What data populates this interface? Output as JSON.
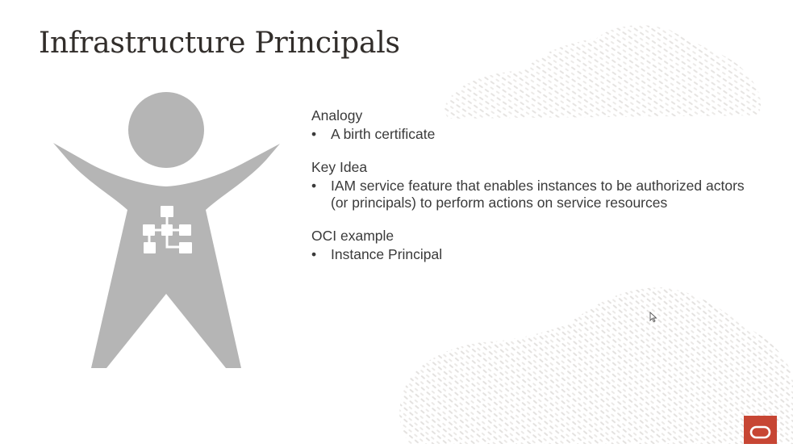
{
  "slide": {
    "title": "Infrastructure Principals",
    "sections": [
      {
        "heading": "Analogy",
        "bullets": [
          "A birth certificate"
        ]
      },
      {
        "heading": "Key Idea",
        "bullets": [
          "IAM service feature that enables instances to be authorized actors (or principals) to perform actions on service resources"
        ]
      },
      {
        "heading": "OCI example",
        "bullets": [
          "Instance Principal"
        ]
      }
    ]
  },
  "graphics": {
    "figure_icon": "person-with-network-icon",
    "logo_icon": "oracle-logo-icon",
    "cursor_icon": "mouse-pointer-icon",
    "texture_icon": "leaf-pattern-texture"
  },
  "colors": {
    "figure": "#b5b5b5",
    "brand": "#c74634",
    "texture": "#e8e6e4",
    "title": "#312d2a",
    "text": "#3a3a3a"
  }
}
